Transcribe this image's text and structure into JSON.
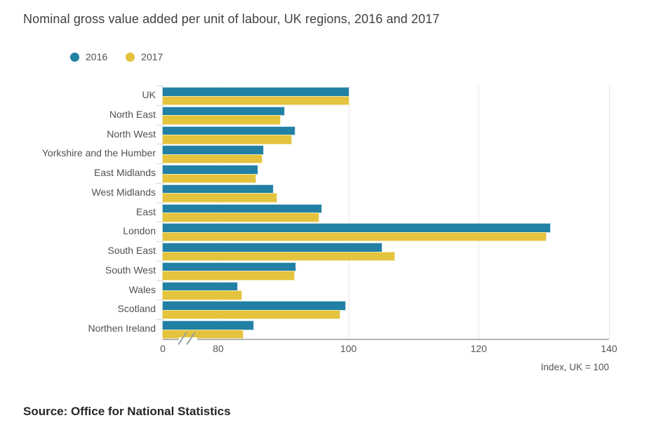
{
  "title": "Nominal gross value added per unit of labour, UK regions, 2016 and 2017",
  "source": "Source: Office for National Statistics",
  "chart_data": {
    "type": "bar",
    "orientation": "horizontal",
    "title": "Nominal gross value added per unit of labour, UK regions, 2016 and 2017",
    "categories": [
      "UK",
      "North East",
      "North West",
      "Yorkshire and the Humber",
      "East Midlands",
      "West Midlands",
      "East",
      "London",
      "South East",
      "South West",
      "Wales",
      "Scotland",
      "Northen Ireland"
    ],
    "series": [
      {
        "name": "2016",
        "color": "#2180a4",
        "halo": "#bedae6",
        "values": [
          100,
          90.1,
          91.7,
          86.9,
          86.0,
          88.4,
          95.8,
          130.9,
          105.1,
          91.9,
          82.9,
          99.5,
          85.4
        ]
      },
      {
        "name": "2017",
        "color": "#e4c33d",
        "halo": "#f2e6ab",
        "values": [
          100,
          89.5,
          91.2,
          86.7,
          85.7,
          88.9,
          95.4,
          130.3,
          107.0,
          91.6,
          83.6,
          98.6,
          83.8
        ]
      }
    ],
    "x_ticks": [
      0,
      80,
      100,
      120,
      140
    ],
    "xlim_display": [
      80,
      140
    ],
    "axis_break_between": [
      0,
      80
    ],
    "xlabel_note": "Index, UK = 100",
    "grid": true,
    "legend_position": "top-left"
  }
}
